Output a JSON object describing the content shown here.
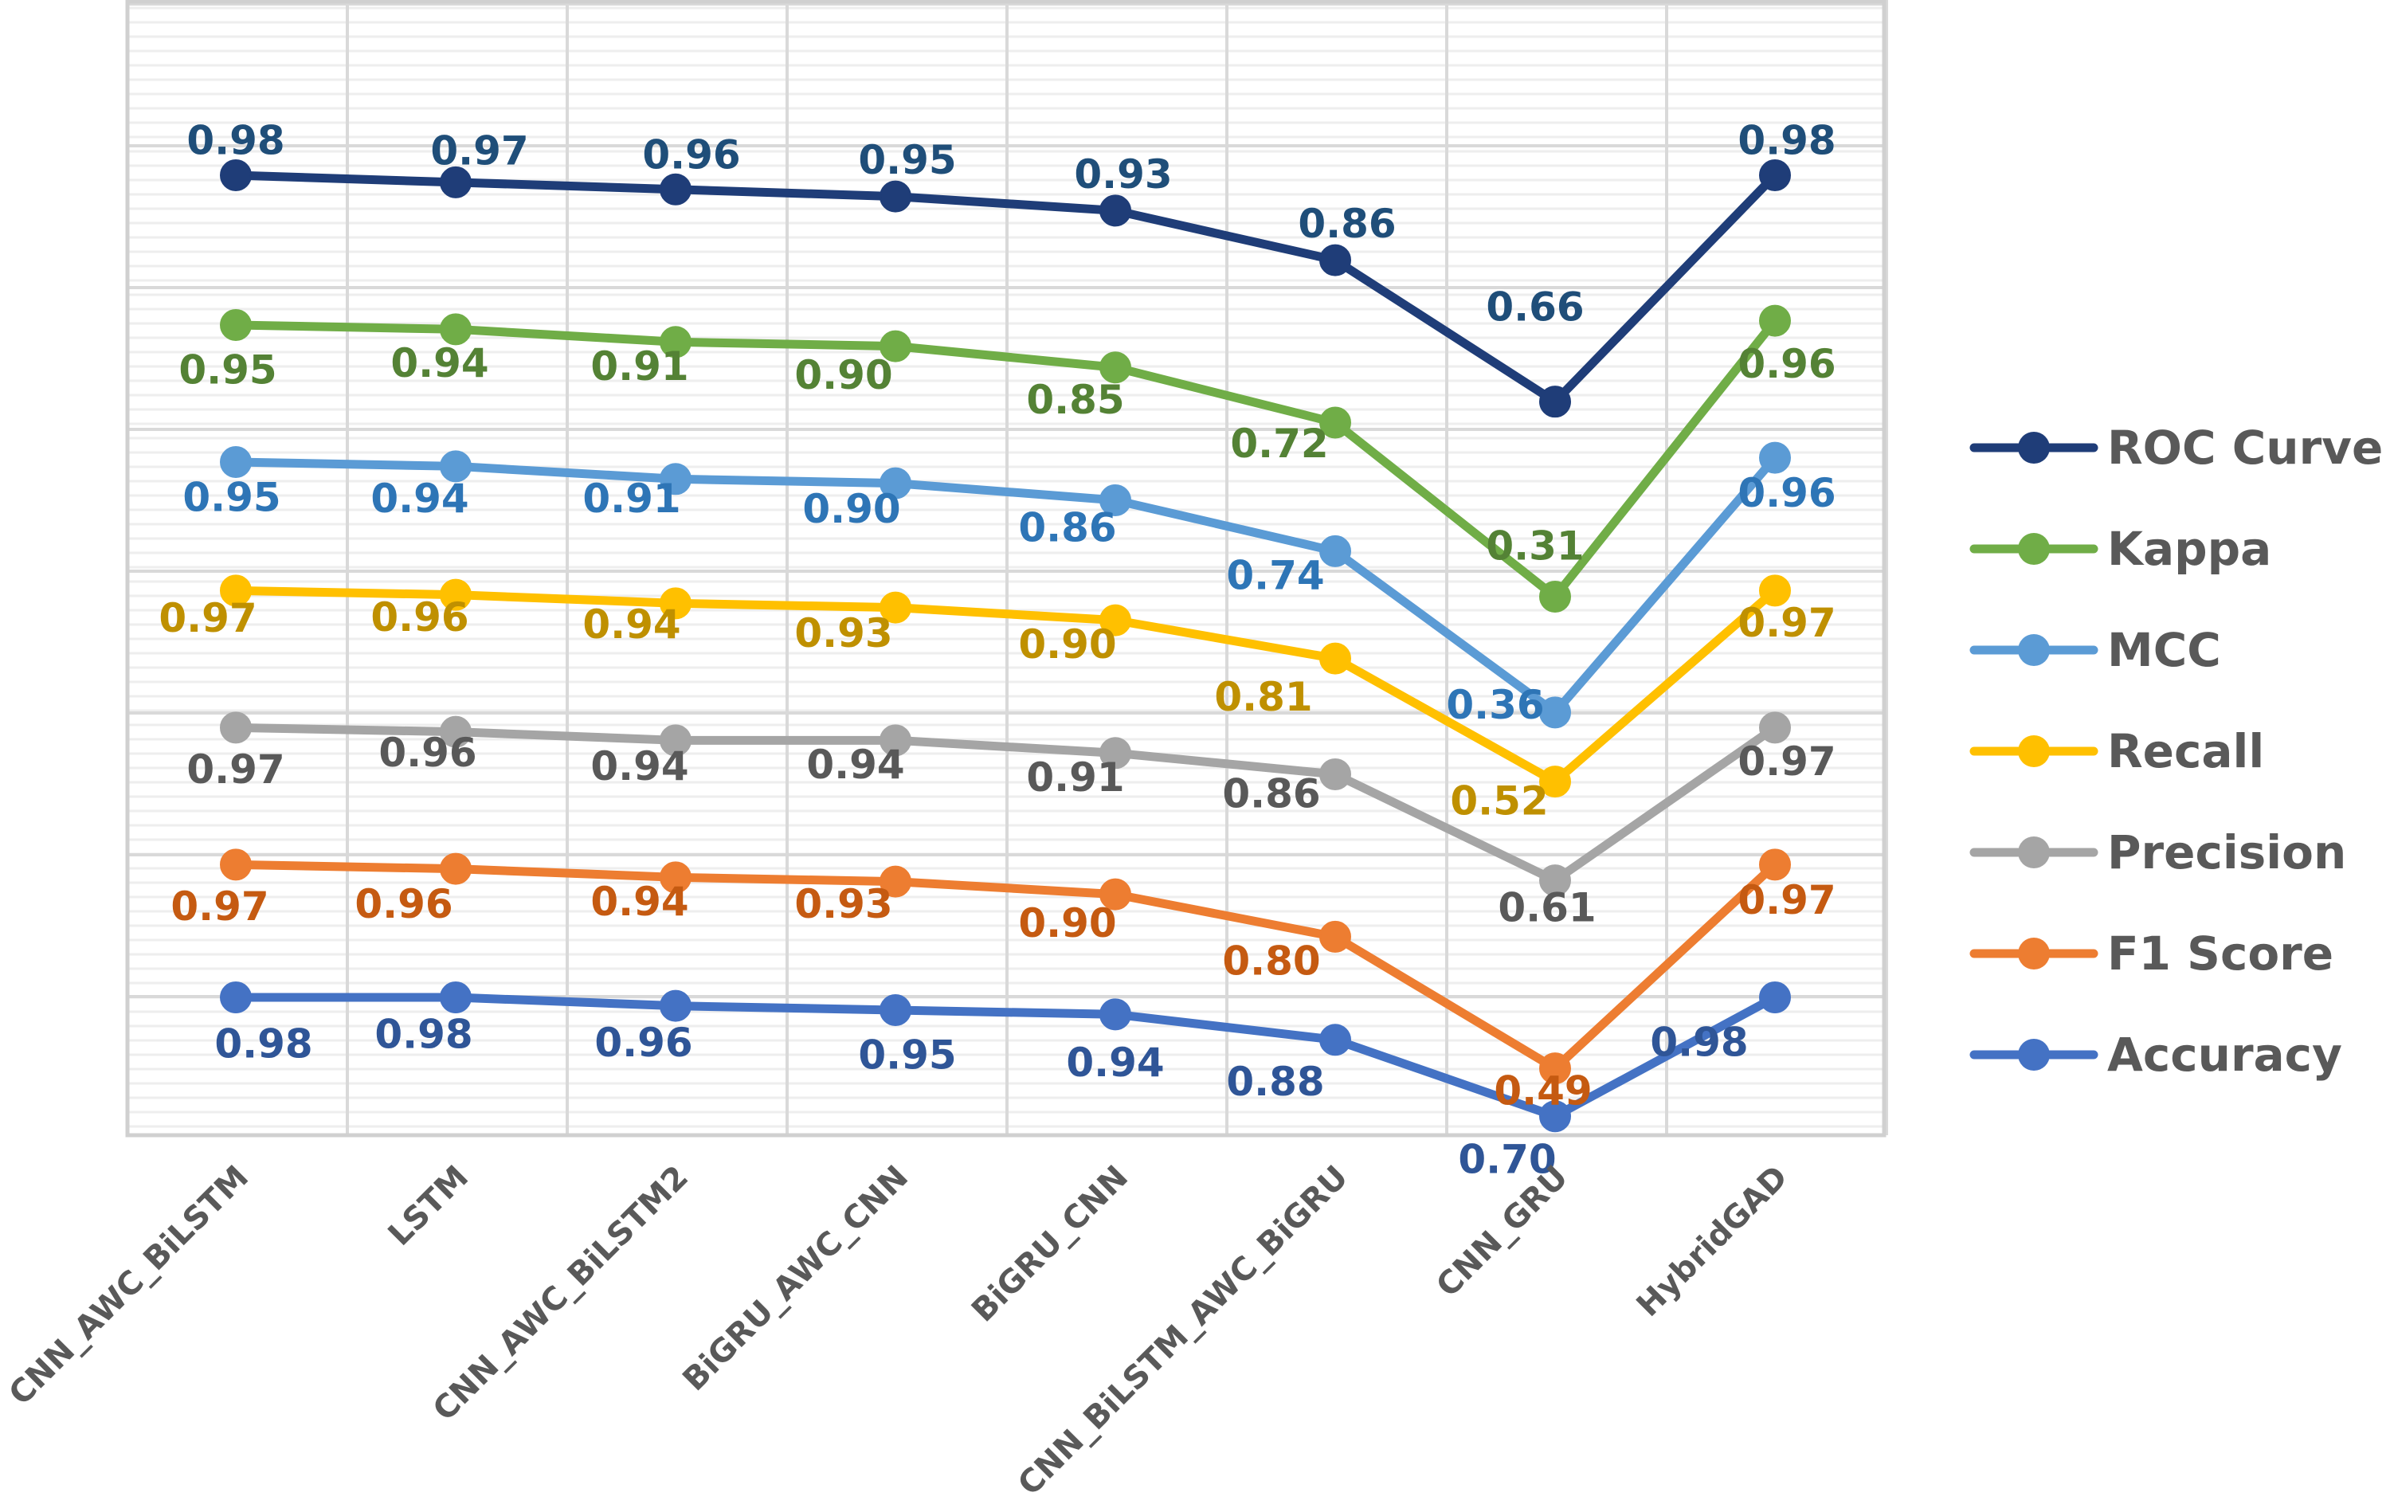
{
  "chart_data": {
    "type": "line",
    "title": "",
    "xlabel": "",
    "ylabel": "",
    "ylim": [
      0,
      8
    ],
    "grid": true,
    "legend_position": "right",
    "categories": [
      "CNN_AWC_BiLSTM",
      "LSTM",
      "CNN_AWC_BiLSTM2",
      "BiGRU_AWC_CNN",
      "BiGRU_CNN",
      "CNN_BiLSTM_AWC_BiGRU",
      "CNN_GRU",
      "HybridGAD"
    ],
    "series": [
      {
        "name": "ROC Curve",
        "color": "#1F3D78",
        "label_color": "#1F4E79",
        "values": [
          0.98,
          0.97,
          0.96,
          0.95,
          0.93,
          0.86,
          0.66,
          0.98
        ]
      },
      {
        "name": "Kappa",
        "color": "#70AD47",
        "label_color": "#548235",
        "values": [
          0.95,
          0.94,
          0.91,
          0.9,
          0.85,
          0.72,
          0.31,
          0.96
        ]
      },
      {
        "name": "MCC",
        "color": "#5B9BD5",
        "label_color": "#2E75B6",
        "values": [
          0.95,
          0.94,
          0.91,
          0.9,
          0.86,
          0.74,
          0.36,
          0.96
        ]
      },
      {
        "name": "Recall",
        "color": "#FFC000",
        "label_color": "#BF9000",
        "values": [
          0.97,
          0.96,
          0.94,
          0.93,
          0.9,
          0.81,
          0.52,
          0.97
        ]
      },
      {
        "name": "Precision",
        "color": "#A5A5A5",
        "label_color": "#595959",
        "values": [
          0.97,
          0.96,
          0.94,
          0.94,
          0.91,
          0.86,
          0.61,
          0.97
        ]
      },
      {
        "name": "F1 Score",
        "color": "#ED7D31",
        "label_color": "#C55A11",
        "values": [
          0.97,
          0.96,
          0.94,
          0.93,
          0.9,
          0.8,
          0.49,
          0.97
        ]
      },
      {
        "name": "Accuracy",
        "color": "#4472C4",
        "label_color": "#2F5597",
        "values": [
          0.98,
          0.98,
          0.96,
          0.95,
          0.94,
          0.88,
          0.7,
          0.98
        ]
      }
    ],
    "data_labels": [
      [
        "0.98",
        "0.97",
        "0.96",
        "0.95",
        "0.93",
        "0.86",
        "0.66",
        "0.98"
      ],
      [
        "0.95",
        "0.94",
        "0.91",
        "0.90",
        "0.85",
        "0.72",
        "0.31",
        "0.96"
      ],
      [
        "0.95",
        "0.94",
        "0.91",
        "0.90",
        "0.86",
        "0.74",
        "0.36",
        "0.96"
      ],
      [
        "0.97",
        "0.96",
        "0.94",
        "0.93",
        "0.90",
        "0.81",
        "0.52",
        "0.97"
      ],
      [
        "0.97",
        "0.96",
        "0.94",
        "0.94",
        "0.91",
        "0.86",
        "0.61",
        "0.97"
      ],
      [
        "0.97",
        "0.96",
        "0.94",
        "0.93",
        "0.90",
        "0.80",
        "0.49",
        "0.97"
      ],
      [
        "0.98",
        "0.98",
        "0.96",
        "0.95",
        "0.94",
        "0.88",
        "0.70",
        "0.98"
      ]
    ]
  }
}
